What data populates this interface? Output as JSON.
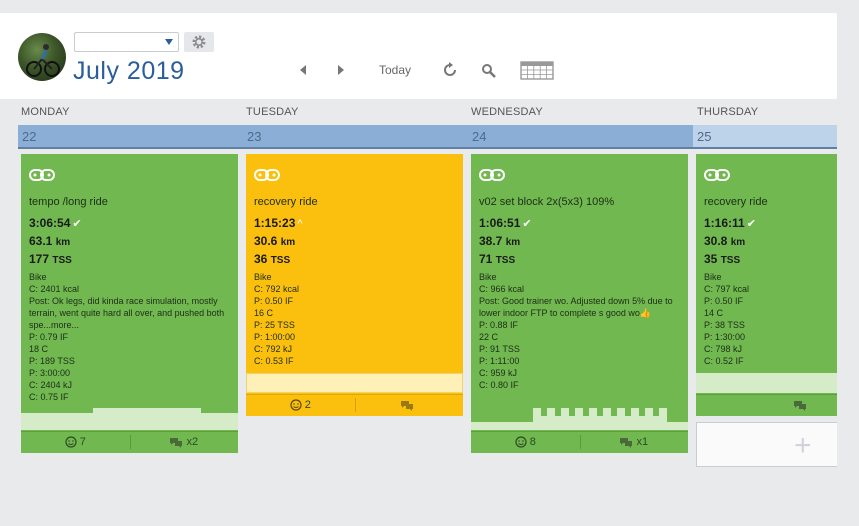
{
  "header": {
    "athlete_select_value": "",
    "month": "July",
    "year": "2019",
    "today_label": "Today"
  },
  "days": [
    {
      "name": "MONDAY",
      "date": "22"
    },
    {
      "name": "TUESDAY",
      "date": "23"
    },
    {
      "name": "WEDNESDAY",
      "date": "24"
    },
    {
      "name": "THURSDAY",
      "date": "25"
    }
  ],
  "workouts": [
    {
      "title": "tempo /long ride",
      "duration": "3:06:54",
      "distance": "63.1",
      "distance_unit": "km",
      "tss": "177",
      "tss_unit": "TSS",
      "status_mark": "✔",
      "details": [
        "Bike",
        "C: 2401 kcal"
      ],
      "post": "Post: Ok legs, did kinda race simulation, mostly terrain, went quite hard all over, and pushed both spe...more...",
      "metrics": [
        "P: 0.79 IF",
        "18 C",
        "P: 189 TSS",
        "P: 3:00:00",
        "C: 2404 kJ",
        "C: 0.75 IF"
      ],
      "likes": "7",
      "comments": "x2"
    },
    {
      "title": "recovery ride",
      "duration": "1:15:23",
      "distance": "30.6",
      "distance_unit": "km",
      "tss": "36",
      "tss_unit": "TSS",
      "status_mark": "^",
      "details": [
        "Bike",
        "C: 792 kcal",
        "P: 0.50 IF",
        "16 C",
        "P: 25 TSS",
        "P: 1:00:00",
        "C: 792 kJ",
        "C: 0.53 IF"
      ],
      "post": "",
      "metrics": [],
      "likes": "2",
      "comments": ""
    },
    {
      "title": "v02 set block 2x(5x3) 109%",
      "duration": "1:06:51",
      "distance": "38.7",
      "distance_unit": "km",
      "tss": "71",
      "tss_unit": "TSS",
      "status_mark": "✔",
      "details": [
        "Bike",
        "C: 966 kcal"
      ],
      "post": "Post: Good trainer wo. Adjusted down 5% due to lower indoor FTP to complete s good wo👍",
      "metrics": [
        "P: 0.88 IF",
        "22 C",
        "P: 91 TSS",
        "P: 1:11:00",
        "C: 959 kJ",
        "C: 0.80 IF"
      ],
      "likes": "8",
      "comments": "x1"
    },
    {
      "title": "recovery ride",
      "duration": "1:16:11",
      "distance": "30.8",
      "distance_unit": "km",
      "tss": "35",
      "tss_unit": "TSS",
      "status_mark": "✔",
      "details": [
        "Bike",
        "C: 797 kcal",
        "P: 0.50 IF",
        "14 C",
        "P: 38 TSS",
        "P: 1:30:00",
        "C: 798 kJ",
        "C: 0.52 IF"
      ],
      "post": "",
      "metrics": [],
      "likes": "",
      "comments": ""
    }
  ],
  "add_label": "+",
  "colors": {
    "completed": "#70b84f",
    "partial": "#fbbf0d",
    "accent": "#2a5d9b"
  },
  "icons": {
    "avatar": "avatar-photo",
    "settings": "gear-icon",
    "prev": "chevron-left-icon",
    "next": "chevron-right-icon",
    "refresh": "refresh-icon",
    "search": "search-icon",
    "calendar": "calendar-icon",
    "bike": "bike-chain-icon",
    "smile": "smile-icon",
    "comment": "comment-icon"
  }
}
